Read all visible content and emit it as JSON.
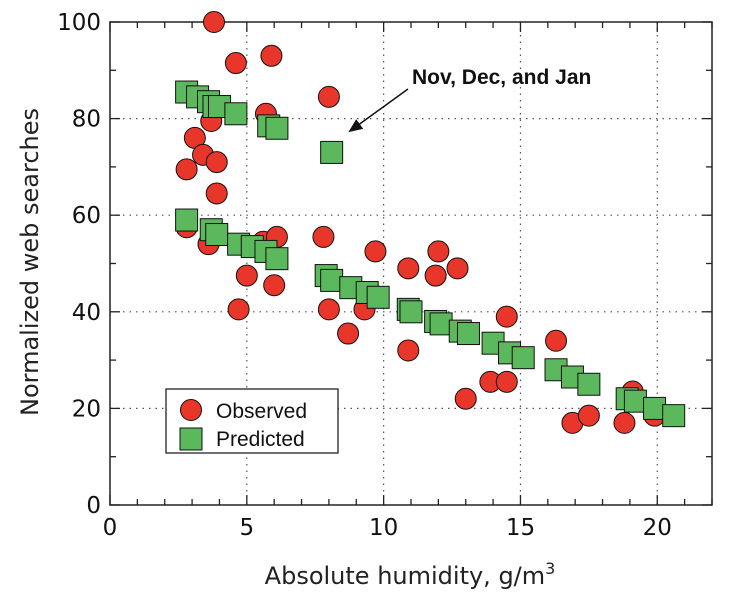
{
  "chart_data": {
    "type": "scatter",
    "xlabel": "Absolute humidity, g/m",
    "xlabel_superscript": "3",
    "ylabel": "Normalized web searches",
    "xlim": [
      0,
      22
    ],
    "ylim": [
      0,
      100
    ],
    "x_ticks": [
      0,
      5,
      10,
      15,
      20
    ],
    "y_ticks": [
      0,
      20,
      40,
      60,
      80,
      100
    ],
    "grid": true,
    "legend_position": "bottom-left",
    "annotation": {
      "text": "Nov, Dec, and Jan",
      "points_to": [
        8.0,
        73
      ]
    },
    "series": [
      {
        "name": "Observed",
        "marker": "circle",
        "color": "#e8372a",
        "points": [
          [
            3.8,
            100
          ],
          [
            4.6,
            91.5
          ],
          [
            5.9,
            93
          ],
          [
            8.0,
            84.5
          ],
          [
            5.7,
            81
          ],
          [
            3.7,
            79.5
          ],
          [
            3.1,
            76
          ],
          [
            3.4,
            72.5
          ],
          [
            3.9,
            71
          ],
          [
            2.8,
            69.5
          ],
          [
            3.9,
            64.5
          ],
          [
            2.8,
            57.5
          ],
          [
            3.6,
            54
          ],
          [
            5.6,
            54.5
          ],
          [
            6.1,
            55.5
          ],
          [
            7.8,
            55.5
          ],
          [
            5.0,
            47.5
          ],
          [
            6.0,
            45.5
          ],
          [
            4.7,
            40.5
          ],
          [
            8.0,
            40.5
          ],
          [
            8.7,
            35.5
          ],
          [
            9.3,
            40.5
          ],
          [
            9.7,
            52.5
          ],
          [
            10.9,
            49
          ],
          [
            12.0,
            52.5
          ],
          [
            11.9,
            47.5
          ],
          [
            12.7,
            49
          ],
          [
            10.9,
            32
          ],
          [
            13.0,
            22
          ],
          [
            14.5,
            39
          ],
          [
            13.9,
            25.5
          ],
          [
            14.5,
            25.5
          ],
          [
            16.3,
            34
          ],
          [
            16.9,
            17
          ],
          [
            17.5,
            18.5
          ],
          [
            18.8,
            17
          ],
          [
            19.1,
            23.5
          ],
          [
            19.9,
            18.5
          ]
        ]
      },
      {
        "name": "Predicted",
        "marker": "square",
        "color": "#5cb85c",
        "points": [
          [
            2.8,
            85.5
          ],
          [
            3.2,
            84.5
          ],
          [
            3.6,
            83.5
          ],
          [
            3.8,
            82.5
          ],
          [
            4.0,
            82.5
          ],
          [
            4.6,
            81
          ],
          [
            5.8,
            78.5
          ],
          [
            6.1,
            78
          ],
          [
            8.1,
            73
          ],
          [
            2.8,
            59
          ],
          [
            3.7,
            57
          ],
          [
            3.9,
            56
          ],
          [
            4.7,
            54
          ],
          [
            5.2,
            53.5
          ],
          [
            5.7,
            52.5
          ],
          [
            6.1,
            51
          ],
          [
            7.9,
            47.5
          ],
          [
            8.1,
            46.5
          ],
          [
            8.8,
            45
          ],
          [
            9.4,
            44
          ],
          [
            9.8,
            43
          ],
          [
            10.9,
            40.5
          ],
          [
            11.0,
            40
          ],
          [
            11.9,
            38
          ],
          [
            12.1,
            37.5
          ],
          [
            12.8,
            36
          ],
          [
            13.1,
            35.5
          ],
          [
            14.0,
            33.5
          ],
          [
            14.6,
            31.5
          ],
          [
            15.1,
            30.5
          ],
          [
            16.3,
            28
          ],
          [
            16.9,
            26.5
          ],
          [
            17.5,
            25
          ],
          [
            18.9,
            22
          ],
          [
            19.2,
            21.5
          ],
          [
            19.9,
            20
          ],
          [
            20.6,
            18.5
          ]
        ]
      }
    ]
  }
}
